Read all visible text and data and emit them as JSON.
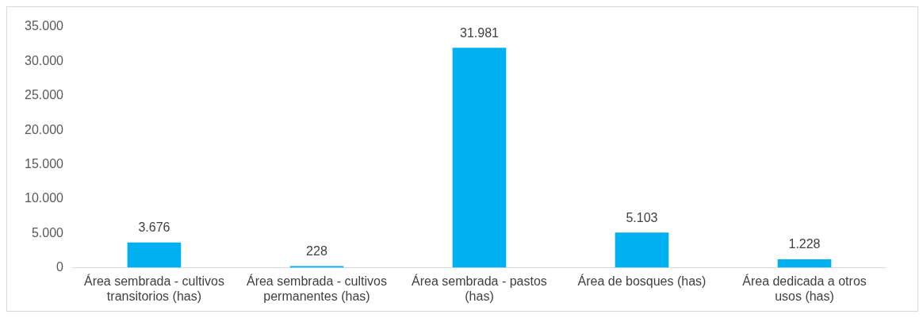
{
  "chart_data": {
    "type": "bar",
    "categories": [
      "Área sembrada - cultivos transitorios (has)",
      "Área sembrada - cultivos permanentes (has)",
      "Área sembrada - pastos (has)",
      "Área de bosques (has)",
      "Área dedicada a otros usos (has)"
    ],
    "values": [
      3676,
      228,
      31981,
      5103,
      1228
    ],
    "color": "#00b0f0",
    "value_labels": [
      "3.676",
      "228",
      "31.981",
      "5.103",
      "1.228"
    ],
    "ylim": [
      0,
      35000
    ],
    "yticks": [
      0,
      {
        "value": 5000,
        "label": "5.000"
      },
      {
        "value": 10000,
        "label": "10.000"
      },
      {
        "value": 15000,
        "label": "15.000"
      },
      {
        "value": 20000,
        "label": "20.000"
      },
      {
        "value": 25000,
        "label": "25.000"
      },
      {
        "value": 30000,
        "label": "30.000"
      },
      {
        "value": 35000,
        "label": "35.000"
      }
    ],
    "grid": false,
    "legend": false
  }
}
